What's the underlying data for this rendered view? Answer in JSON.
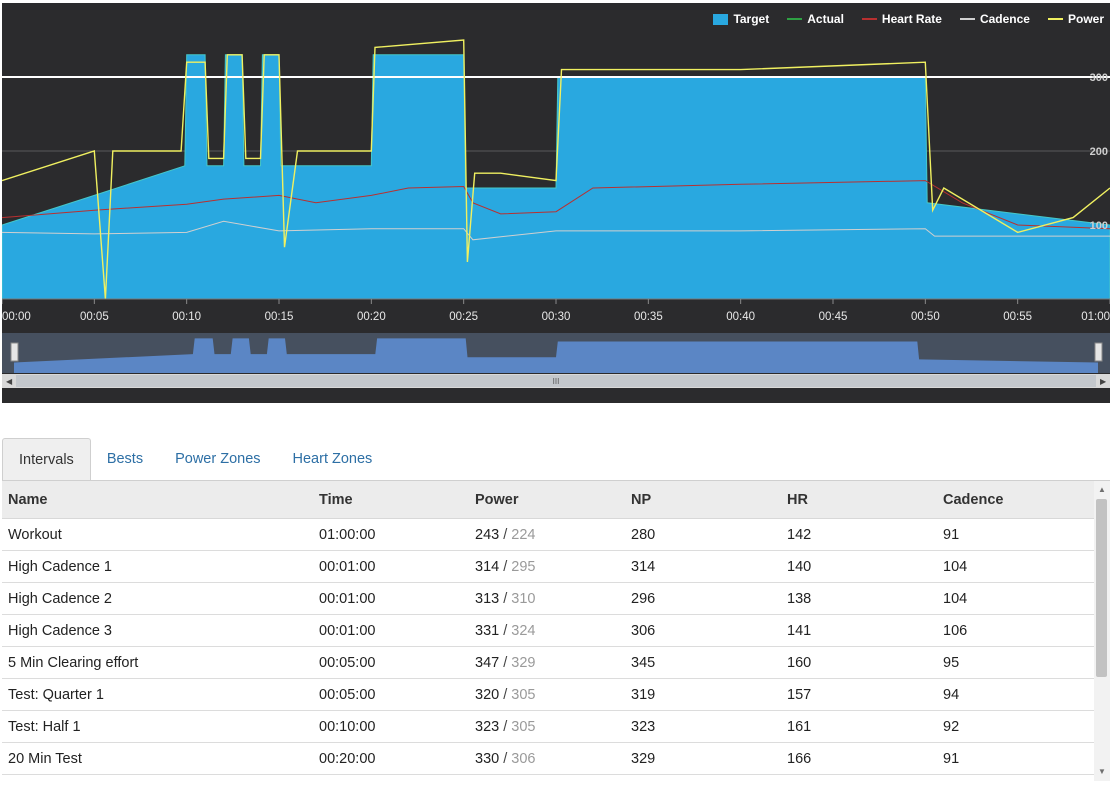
{
  "legend": [
    {
      "label": "Target",
      "color": "#29a8e0",
      "kind": "box"
    },
    {
      "label": "Actual",
      "color": "#2ea043",
      "kind": "line"
    },
    {
      "label": "Heart Rate",
      "color": "#b83030",
      "kind": "line"
    },
    {
      "label": "Cadence",
      "color": "#d0d0d0",
      "kind": "line"
    },
    {
      "label": "Power",
      "color": "#f0f060",
      "kind": "line"
    }
  ],
  "chart_data": {
    "type": "area",
    "x_unit": "minutes",
    "x_ticks": [
      "00:00",
      "00:05",
      "00:10",
      "00:15",
      "00:20",
      "00:25",
      "00:30",
      "00:35",
      "00:40",
      "00:45",
      "00:50",
      "00:55",
      "01:00"
    ],
    "y_ticks": [
      "100",
      "200",
      "300"
    ],
    "xlim": [
      0,
      60
    ],
    "ylim": [
      0,
      400
    ],
    "reference_line": 300,
    "series": [
      {
        "name": "Target",
        "color": "#29a8e0",
        "x": [
          0,
          5,
          9.9,
          10,
          11,
          11.1,
          12,
          12.1,
          13,
          13.1,
          14,
          14.1,
          15,
          15.1,
          20,
          20.1,
          25,
          25.1,
          30,
          30.1,
          50,
          50.1,
          60
        ],
        "y": [
          100,
          140,
          180,
          330,
          330,
          180,
          180,
          330,
          330,
          180,
          180,
          330,
          330,
          180,
          180,
          330,
          330,
          150,
          150,
          300,
          300,
          130,
          100
        ]
      },
      {
        "name": "Power",
        "color": "#f0f060",
        "x": [
          0,
          5,
          5.6,
          6,
          9.7,
          10,
          11,
          11.2,
          12,
          12.2,
          13,
          13.2,
          14,
          14.2,
          15,
          15.3,
          16,
          20,
          20.2,
          25,
          25.2,
          25.6,
          27,
          30,
          30.3,
          40,
          50,
          50.4,
          51,
          55,
          58,
          60
        ],
        "y": [
          160,
          200,
          0,
          200,
          200,
          320,
          320,
          190,
          190,
          330,
          330,
          190,
          190,
          330,
          330,
          70,
          200,
          200,
          340,
          350,
          50,
          170,
          170,
          160,
          310,
          310,
          320,
          120,
          150,
          90,
          110,
          150
        ]
      },
      {
        "name": "Heart Rate",
        "color": "#b83030",
        "x": [
          0,
          5,
          10,
          12,
          15,
          17,
          20,
          22,
          25,
          25.5,
          27,
          30,
          32,
          40,
          50,
          52,
          55,
          60
        ],
        "y": [
          110,
          120,
          128,
          135,
          140,
          130,
          140,
          150,
          152,
          130,
          115,
          118,
          150,
          155,
          160,
          130,
          100,
          95
        ]
      },
      {
        "name": "Cadence",
        "color": "#d0d0d0",
        "x": [
          0,
          5,
          10,
          12,
          15,
          20,
          25,
          25.5,
          30,
          40,
          50,
          50.5,
          55,
          60
        ],
        "y": [
          90,
          88,
          90,
          105,
          92,
          95,
          95,
          80,
          92,
          92,
          95,
          85,
          85,
          85
        ]
      }
    ]
  },
  "tabs": [
    {
      "label": "Intervals",
      "active": true
    },
    {
      "label": "Bests",
      "active": false
    },
    {
      "label": "Power Zones",
      "active": false
    },
    {
      "label": "Heart Zones",
      "active": false
    }
  ],
  "table": {
    "columns": [
      "Name",
      "Time",
      "Power",
      "NP",
      "HR",
      "Cadence"
    ],
    "rows": [
      {
        "name": "Workout",
        "time": "01:00:00",
        "power": "243",
        "power_target": "224",
        "np": "280",
        "hr": "142",
        "cadence": "91"
      },
      {
        "name": "High Cadence 1",
        "time": "00:01:00",
        "power": "314",
        "power_target": "295",
        "np": "314",
        "hr": "140",
        "cadence": "104"
      },
      {
        "name": "High Cadence 2",
        "time": "00:01:00",
        "power": "313",
        "power_target": "310",
        "np": "296",
        "hr": "138",
        "cadence": "104"
      },
      {
        "name": "High Cadence 3",
        "time": "00:01:00",
        "power": "331",
        "power_target": "324",
        "np": "306",
        "hr": "141",
        "cadence": "106"
      },
      {
        "name": "5 Min Clearing effort",
        "time": "00:05:00",
        "power": "347",
        "power_target": "329",
        "np": "345",
        "hr": "160",
        "cadence": "95"
      },
      {
        "name": "Test: Quarter 1",
        "time": "00:05:00",
        "power": "320",
        "power_target": "305",
        "np": "319",
        "hr": "157",
        "cadence": "94"
      },
      {
        "name": "Test: Half 1",
        "time": "00:10:00",
        "power": "323",
        "power_target": "305",
        "np": "323",
        "hr": "161",
        "cadence": "92"
      },
      {
        "name": "20 Min Test",
        "time": "00:20:00",
        "power": "330",
        "power_target": "306",
        "np": "329",
        "hr": "166",
        "cadence": "91"
      }
    ]
  },
  "navigator_label": "III"
}
